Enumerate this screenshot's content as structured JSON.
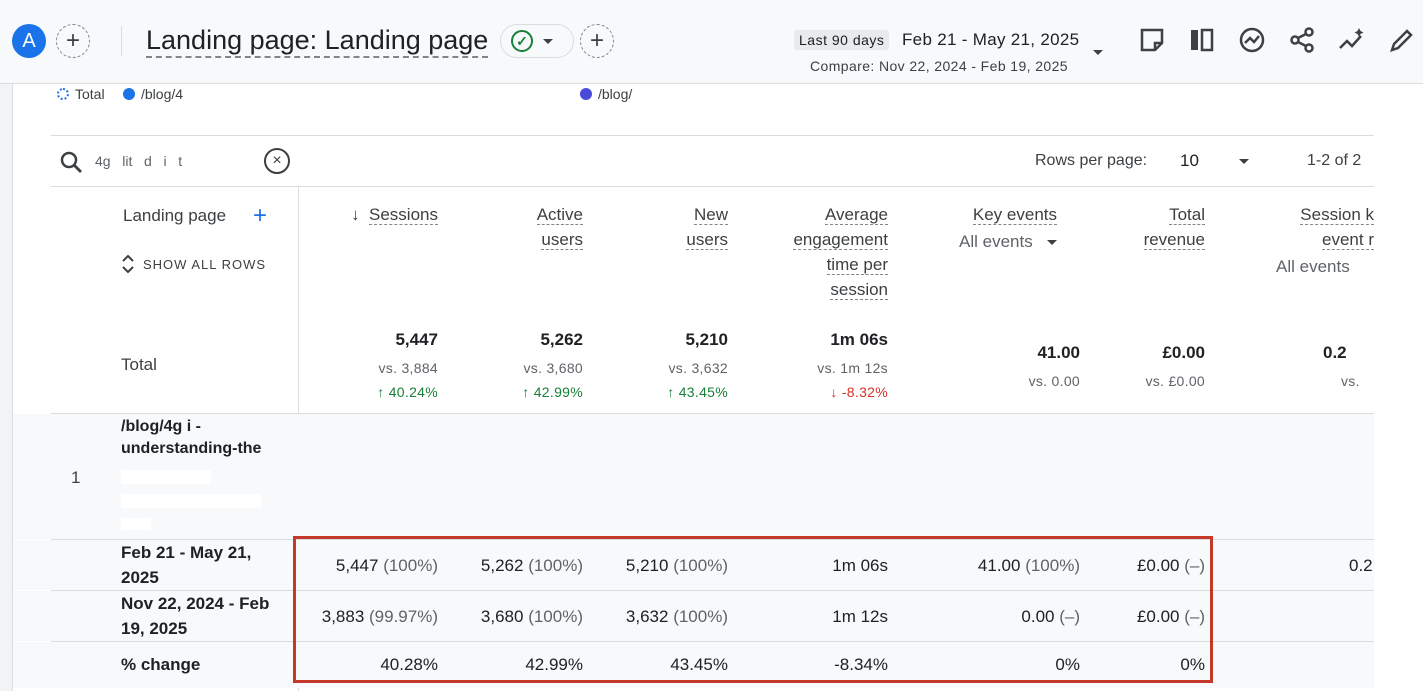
{
  "header": {
    "avatar_letter": "A",
    "add_label": "+",
    "title": "Landing page: Landing page",
    "date_badge": "Last 90 days",
    "date_range": "Feb 21 - May 21, 2025",
    "compare": "Compare: Nov 22, 2024 - Feb 19, 2025"
  },
  "legend": [
    {
      "label": "Total",
      "color": "#1a73e8"
    },
    {
      "label": "/blog/4",
      "color": "#1a73e8"
    },
    {
      "label": "/blog/",
      "color": "#4a4ad9"
    }
  ],
  "toolbar": {
    "search_value": "4g   lit   d   i   t",
    "clear_label": "×",
    "rows_per_page_label": "Rows per page:",
    "rows_per_page_value": "10",
    "pager": "1-2 of 2"
  },
  "table": {
    "dimension_header": "Landing page",
    "show_all_rows": "SHOW ALL ROWS",
    "columns": [
      {
        "line1": "Sessions",
        "line2": "",
        "line3": "",
        "line4": "",
        "sort_arrow": "↓"
      },
      {
        "line1": "Active",
        "line2": "users",
        "line3": "",
        "line4": ""
      },
      {
        "line1": "New",
        "line2": "users",
        "line3": "",
        "line4": ""
      },
      {
        "line1": "Average",
        "line2": "engagement",
        "line3": "time per",
        "line4": "session"
      },
      {
        "line1": "Key events",
        "line2": "",
        "line3": "",
        "line4": "",
        "select": "All events"
      },
      {
        "line1": "Total",
        "line2": "revenue",
        "line3": "",
        "line4": ""
      },
      {
        "line1": "Session k",
        "line2": "event r",
        "line3": "",
        "line4": "",
        "select": "All events"
      }
    ],
    "total": {
      "label": "Total",
      "values": [
        "5,447",
        "5,262",
        "5,210",
        "1m 06s",
        "41.00",
        "£0.00",
        "0.2"
      ],
      "vs": [
        "vs. 3,884",
        "vs. 3,680",
        "vs. 3,632",
        "vs. 1m 12s",
        "vs. 0.00",
        "vs. £0.00",
        "vs."
      ],
      "change": [
        "40.24%",
        "42.99%",
        "43.45%",
        "-8.32%"
      ],
      "change_arrows": [
        "↑",
        "↑",
        "↑",
        "↓"
      ]
    },
    "row1": {
      "index": "1",
      "page_line1": "/blog/4g   i   -",
      "page_line2": "understanding-the"
    },
    "comparisons": [
      {
        "label_line1": "Feb 21 - May 21,",
        "label_line2": "2025",
        "values": [
          "5,447",
          "5,262",
          "5,210",
          "1m 06s",
          "41.00",
          "£0.00",
          "0.2"
        ],
        "pcts": [
          "(100%)",
          "(100%)",
          "(100%)",
          "",
          "(100%)",
          "(–)",
          ""
        ]
      },
      {
        "label_line1": "Nov 22, 2024 - Feb",
        "label_line2": "19, 2025",
        "values": [
          "3,883",
          "3,680",
          "3,632",
          "1m 12s",
          "0.00",
          "£0.00",
          ""
        ],
        "pcts": [
          "(99.97%)",
          "(100%)",
          "(100%)",
          "",
          "(–)",
          "(–)",
          ""
        ]
      },
      {
        "label_line1": "% change",
        "label_line2": "",
        "values": [
          "40.28%",
          "42.99%",
          "43.45%",
          "-8.34%",
          "0%",
          "0%",
          ""
        ],
        "pcts": [
          "",
          "",
          "",
          "",
          "",
          "",
          ""
        ]
      }
    ]
  }
}
